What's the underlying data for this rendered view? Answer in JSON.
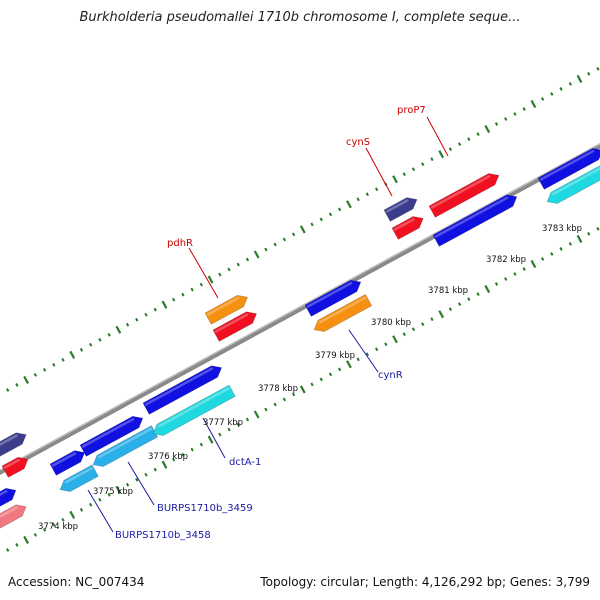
{
  "title": "Burkholderia pseudomallei 1710b chromosome I, complete seque...",
  "footer": {
    "accession": "Accession: NC_007434",
    "summary": "Topology: circular; Length: 4,126,292 bp; Genes: 3,799"
  },
  "colors": {
    "backbone": "#8a8a8a",
    "tick": "#2a7a2a",
    "red_label": "#cc0000",
    "blue_label": "#1a1aa0",
    "blue": "#1010e0",
    "cyan": "#20d8e0",
    "light_blue": "#2ab0e8",
    "orange": "#f59010",
    "red": "#f01020",
    "navy": "#3c3c8c",
    "pink": "#f07880"
  },
  "kbp_labels": [
    "3774 kbp",
    "3775 kbp",
    "3776 kbp",
    "3777 kbp",
    "3778 kbp",
    "3779 kbp",
    "3780 kbp",
    "3781 kbp",
    "3782 kbp",
    "3783 kbp"
  ],
  "gene_labels": [
    {
      "name": "proP7",
      "color": "red"
    },
    {
      "name": "cynS",
      "color": "red"
    },
    {
      "name": "pdhR",
      "color": "red"
    },
    {
      "name": "cynR",
      "color": "blue"
    },
    {
      "name": "dctA-1",
      "color": "blue"
    },
    {
      "name": "BURPS1710b_3459",
      "color": "blue"
    },
    {
      "name": "BURPS1710b_3458",
      "color": "blue"
    }
  ]
}
